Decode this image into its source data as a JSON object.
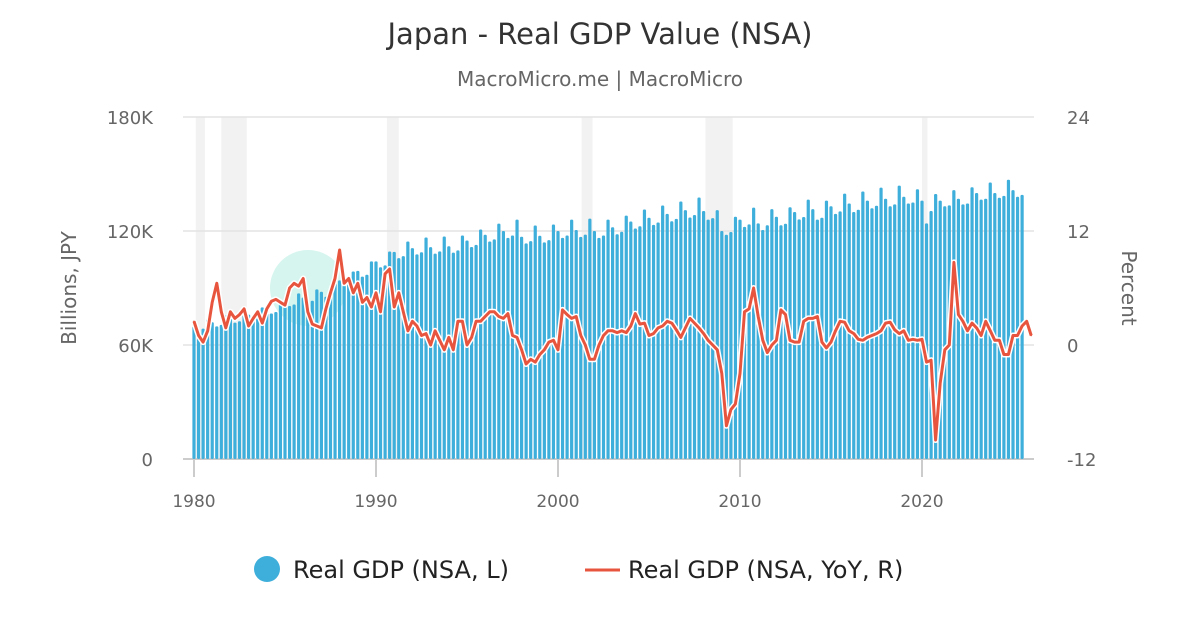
{
  "chart_data": {
    "type": "bar+line",
    "title": "Japan - Real GDP Value (NSA)",
    "subtitle": "MacroMicro.me | MacroMicro",
    "ylabel_left": "Billions, JPY",
    "ylabel_right": "Percent",
    "ylim_left": [
      0,
      180000
    ],
    "ylim_right": [
      -12,
      24
    ],
    "yticks_left": [
      "0",
      "60K",
      "120K",
      "180K"
    ],
    "yticks_right": [
      "-12",
      "0",
      "12",
      "24"
    ],
    "xticks": [
      "1980",
      "1990",
      "2000",
      "2010",
      "2020"
    ],
    "x_start": "1980Q1",
    "frequency": "quarterly",
    "grid": true,
    "legend_position": "bottom",
    "recession_bands": [
      [
        1980.1,
        1980.6
      ],
      [
        1981.5,
        1982.9
      ],
      [
        1990.6,
        1991.25
      ],
      [
        2001.3,
        2001.9
      ],
      [
        2008.1,
        2009.6
      ],
      [
        2020.0,
        2020.3
      ]
    ],
    "colors": {
      "bars": "#3eaedb",
      "line": "#e8553e",
      "recession": "#f2f2f2",
      "watermark": "#d6f5ee"
    },
    "series": [
      {
        "name": "Real GDP (NSA, L)",
        "kind": "bar",
        "axis": "left",
        "values": [
          70000,
          67900,
          68600,
          73500,
          72000,
          69800,
          70600,
          75600,
          74000,
          71800,
          72500,
          77700,
          76000,
          73700,
          74500,
          79800,
          79000,
          76600,
          77400,
          83000,
          83000,
          80500,
          81300,
          87200,
          85000,
          82500,
          83300,
          89300,
          88000,
          85400,
          86200,
          92400,
          94000,
          91200,
          92100,
          98700,
          99000,
          96000,
          97000,
          104000,
          104000,
          100900,
          101900,
          109200,
          109000,
          105700,
          106800,
          114500,
          111000,
          107700,
          108800,
          116600,
          111500,
          108100,
          109300,
          117100,
          112000,
          108600,
          109800,
          117600,
          115000,
          111600,
          112700,
          120800,
          118000,
          114500,
          115600,
          123900,
          120000,
          116400,
          117600,
          126000,
          117000,
          113500,
          114700,
          122900,
          117500,
          114000,
          115200,
          123400,
          120000,
          116400,
          117600,
          126000,
          120500,
          116900,
          118100,
          126500,
          120000,
          116400,
          117600,
          126000,
          122000,
          118300,
          119600,
          128100,
          125000,
          121300,
          122500,
          131300,
          127000,
          123200,
          124500,
          133400,
          129000,
          125100,
          126400,
          135500,
          131000,
          127100,
          128400,
          137600,
          130500,
          126000,
          126800,
          131000,
          120000,
          118000,
          119500,
          127500,
          126000,
          122200,
          123500,
          132300,
          124000,
          120500,
          123000,
          131500,
          127500,
          123000,
          123800,
          132500,
          130000,
          126100,
          127400,
          136500,
          131500,
          126000,
          127000,
          136000,
          133000,
          129000,
          130300,
          139700,
          134500,
          130000,
          131200,
          140800,
          136000,
          132000,
          133300,
          142800,
          137000,
          133000,
          134000,
          143900,
          138000,
          134500,
          135000,
          142000,
          136000,
          124000,
          130500,
          139500,
          136000,
          133000,
          133500,
          141500,
          137000,
          134000,
          134500,
          143000,
          140000,
          136500,
          137000,
          145500,
          140000,
          137500,
          138500,
          147000,
          141500,
          138000,
          139000
        ]
      },
      {
        "name": "Real GDP (NSA, YoY, R)",
        "kind": "line",
        "axis": "right",
        "values": [
          2.5,
          1.0,
          0.3,
          1.5,
          4.5,
          6.5,
          3.5,
          1.8,
          3.5,
          2.8,
          3.2,
          3.8,
          2.0,
          2.8,
          3.5,
          2.3,
          3.8,
          4.6,
          4.8,
          4.5,
          4.2,
          6.0,
          6.5,
          6.2,
          7.0,
          3.5,
          2.2,
          2.0,
          1.8,
          3.8,
          5.5,
          7.0,
          10.0,
          6.5,
          7.0,
          5.5,
          6.5,
          4.5,
          5.0,
          4.0,
          5.5,
          3.5,
          7.5,
          8.0,
          4.0,
          5.5,
          3.5,
          1.5,
          2.5,
          2.0,
          1.0,
          1.2,
          0.0,
          1.5,
          0.5,
          -0.5,
          0.8,
          -0.5,
          2.5,
          2.5,
          0.0,
          0.8,
          2.5,
          2.5,
          3.0,
          3.5,
          3.5,
          3.0,
          2.8,
          3.3,
          1.0,
          0.8,
          -0.5,
          -2.0,
          -1.5,
          -1.8,
          -1.0,
          -0.5,
          0.3,
          0.5,
          -0.5,
          3.7,
          3.2,
          2.8,
          3.0,
          1.0,
          0.0,
          -1.5,
          -1.5,
          0.0,
          1.0,
          1.5,
          1.5,
          1.3,
          1.5,
          1.3,
          2.0,
          3.3,
          2.2,
          2.3,
          1.0,
          1.2,
          1.8,
          2.0,
          2.5,
          2.3,
          1.6,
          0.8,
          1.8,
          2.8,
          2.3,
          1.8,
          1.2,
          0.5,
          0.0,
          -0.5,
          -3.0,
          -8.5,
          -6.8,
          -6.2,
          -3.0,
          3.5,
          3.8,
          6.0,
          3.0,
          0.5,
          -0.8,
          0.0,
          0.5,
          3.7,
          3.2,
          0.5,
          0.3,
          0.3,
          2.5,
          2.8,
          2.8,
          3.0,
          0.3,
          -0.3,
          0.3,
          1.5,
          2.5,
          2.4,
          1.5,
          1.2,
          0.6,
          0.5,
          0.8,
          1.0,
          1.2,
          1.5,
          2.3,
          2.4,
          1.6,
          1.2,
          1.5,
          0.5,
          0.6,
          0.5,
          0.6,
          -1.8,
          -1.6,
          -10.0,
          -4.0,
          -0.5,
          0.0,
          8.7,
          3.2,
          2.5,
          1.5,
          2.3,
          1.8,
          1.0,
          2.5,
          1.5,
          0.5,
          0.5,
          -1.0,
          -1.0,
          1.0,
          1.0,
          2.0,
          2.5,
          1.0
        ]
      }
    ]
  }
}
